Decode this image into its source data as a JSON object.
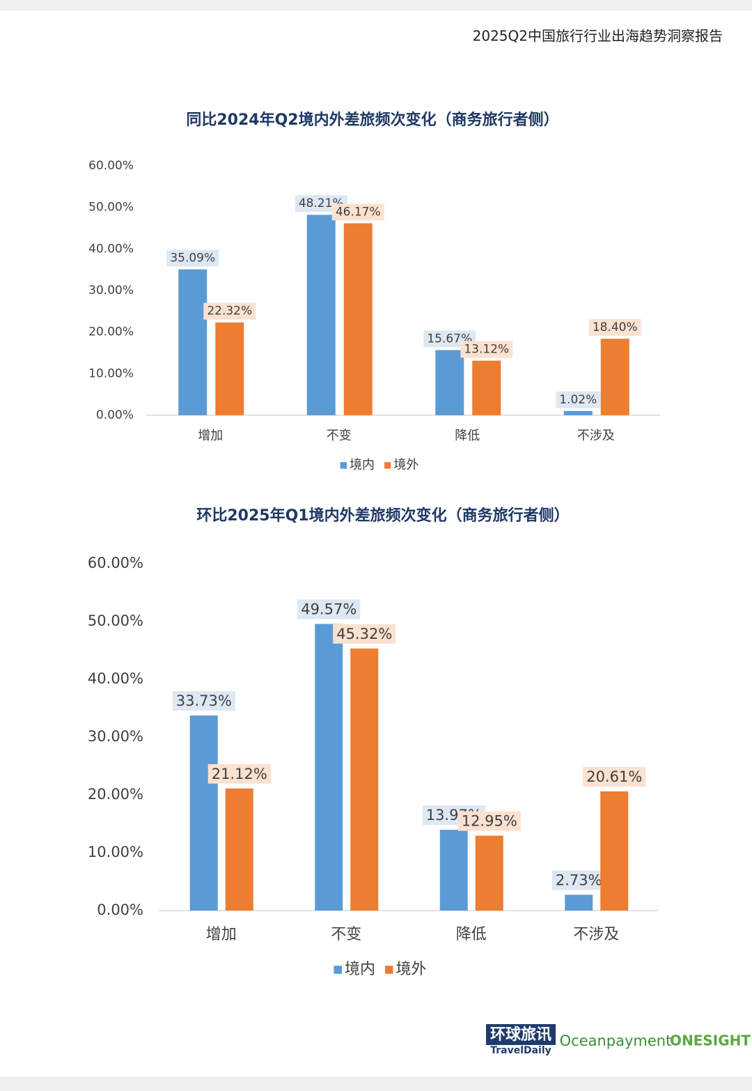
{
  "header": {
    "title": "2025Q2中国旅行行业出海趋势洞察报告"
  },
  "chart_data": [
    {
      "type": "bar",
      "title": "同比2024年Q2境内外差旅频次变化（商务旅行者侧）",
      "categories": [
        "增加",
        "不变",
        "降低",
        "不涉及"
      ],
      "series": [
        {
          "name": "境内",
          "color": "#5b9bd5",
          "values": [
            35.09,
            48.21,
            15.67,
            1.02
          ],
          "value_labels": [
            "35.09%",
            "48.21%",
            "15.67%",
            "1.02%"
          ]
        },
        {
          "name": "境外",
          "color": "#ed7d31",
          "values": [
            22.32,
            46.17,
            13.12,
            18.4
          ],
          "value_labels": [
            "22.32%",
            "46.17%",
            "13.12%",
            "18.40%"
          ]
        }
      ],
      "ylim": [
        0,
        60
      ],
      "yticks": [
        {
          "value": 0,
          "label": "0.00%"
        },
        {
          "value": 10,
          "label": "10.00%"
        },
        {
          "value": 20,
          "label": "20.00%"
        },
        {
          "value": 30,
          "label": "30.00%"
        },
        {
          "value": 40,
          "label": "40.00%"
        },
        {
          "value": 50,
          "label": "50.00%"
        },
        {
          "value": 60,
          "label": "60.00%"
        }
      ],
      "grid": false,
      "legend": "bottom"
    },
    {
      "type": "bar",
      "title": "环比2025年Q1境内外差旅频次变化（商务旅行者侧）",
      "categories": [
        "增加",
        "不变",
        "降低",
        "不涉及"
      ],
      "series": [
        {
          "name": "境内",
          "color": "#5b9bd5",
          "values": [
            33.73,
            49.57,
            13.97,
            2.73
          ],
          "value_labels": [
            "33.73%",
            "49.57%",
            "13.97%",
            "2.73%"
          ]
        },
        {
          "name": "境外",
          "color": "#ed7d31",
          "values": [
            21.12,
            45.32,
            12.95,
            20.61
          ],
          "value_labels": [
            "21.12%",
            "45.32%",
            "12.95%",
            "20.61%"
          ]
        }
      ],
      "ylim": [
        0,
        60
      ],
      "yticks": [
        {
          "value": 0,
          "label": "0.00%"
        },
        {
          "value": 10,
          "label": "10.00%"
        },
        {
          "value": 20,
          "label": "20.00%"
        },
        {
          "value": 30,
          "label": "30.00%"
        },
        {
          "value": 40,
          "label": "40.00%"
        },
        {
          "value": 50,
          "label": "50.00%"
        },
        {
          "value": 60,
          "label": "60.00%"
        }
      ],
      "grid": false,
      "legend": "bottom"
    }
  ],
  "footer": {
    "logos": [
      "环球旅讯",
      "TravelDaily",
      "Oceanpayment",
      "ONESIGHT"
    ]
  }
}
